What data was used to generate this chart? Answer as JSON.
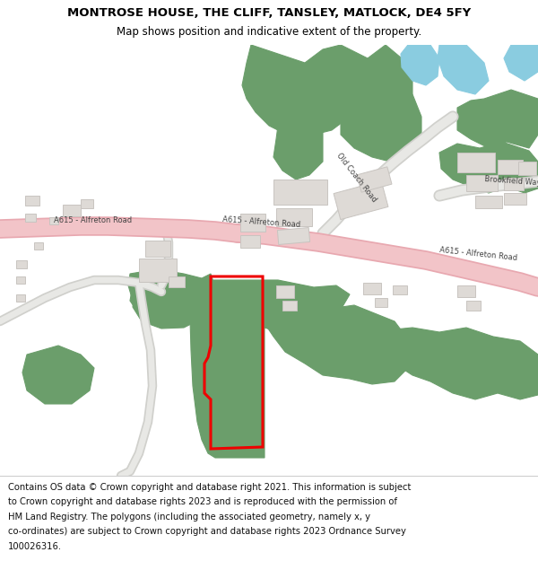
{
  "title": "MONTROSE HOUSE, THE CLIFF, TANSLEY, MATLOCK, DE4 5FY",
  "subtitle": "Map shows position and indicative extent of the property.",
  "footer_lines": [
    "Contains OS data © Crown copyright and database right 2021. This information is subject",
    "to Crown copyright and database rights 2023 and is reproduced with the permission of",
    "HM Land Registry. The polygons (including the associated geometry, namely x, y",
    "co-ordinates) are subject to Crown copyright and database rights 2023 Ordnance Survey",
    "100026316."
  ],
  "map_bg": "#f2f1ee",
  "road_color": "#f2c4c8",
  "road_outline": "#e8a8b0",
  "road_grey": "#e8e8e5",
  "road_grey_outline": "#d0d0cc",
  "green_color": "#6b9e6b",
  "building_color": "#dedad6",
  "building_outline": "#c8c4c0",
  "water_color": "#8acce0",
  "red_outline": "#ee0000",
  "title_fontsize": 9.5,
  "subtitle_fontsize": 8.5,
  "footer_fontsize": 7.2,
  "label_fontsize": 6.0
}
